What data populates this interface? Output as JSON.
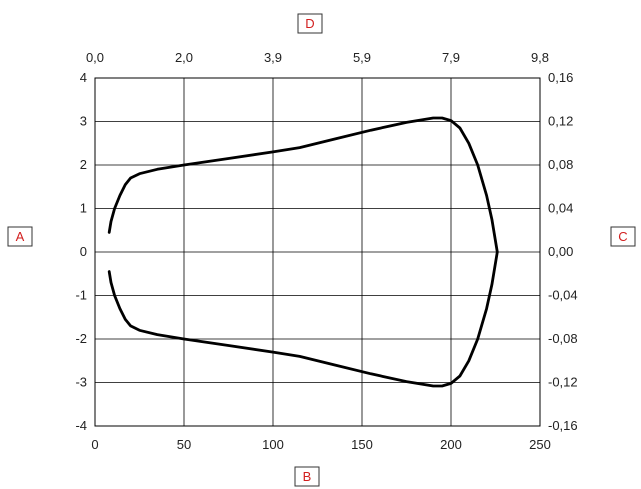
{
  "chart_data": {
    "type": "line",
    "title": "",
    "axis_labels": {
      "left": "A",
      "bottom": "B",
      "right": "C",
      "top": "D"
    },
    "x_bottom": {
      "ticks": [
        "0",
        "50",
        "100",
        "150",
        "200",
        "250"
      ],
      "range": [
        0,
        250
      ]
    },
    "x_top": {
      "ticks": [
        "0,0",
        "2,0",
        "3,9",
        "5,9",
        "7,9",
        "9,8"
      ],
      "range": [
        0,
        9.8
      ]
    },
    "y_left": {
      "ticks": [
        "4",
        "3",
        "2",
        "1",
        "0",
        "-1",
        "-2",
        "-3",
        "-4"
      ],
      "range": [
        -4,
        4
      ]
    },
    "y_right": {
      "ticks": [
        "0,16",
        "0,12",
        "0,08",
        "0,04",
        "0,00",
        "-0,04",
        "-0,08",
        "-0,12",
        "-0,16"
      ],
      "range": [
        -0.16,
        0.16
      ]
    },
    "grid": true,
    "series": [
      {
        "x": [
          8,
          9,
          11,
          14,
          17,
          20,
          25,
          35,
          50,
          75,
          100,
          115,
          135,
          155,
          175,
          190,
          195,
          200,
          205,
          210,
          215,
          220,
          223,
          226,
          223,
          220,
          215,
          210,
          205,
          200,
          195,
          190,
          175,
          155,
          135,
          115,
          100,
          75,
          50,
          35,
          25,
          20,
          17,
          14,
          11,
          9,
          8
        ],
        "y": [
          0.45,
          0.7,
          1.0,
          1.3,
          1.55,
          1.7,
          1.8,
          1.9,
          2.0,
          2.15,
          2.3,
          2.4,
          2.6,
          2.8,
          2.98,
          3.08,
          3.08,
          3.02,
          2.85,
          2.5,
          2.0,
          1.3,
          0.75,
          0.0,
          -0.75,
          -1.3,
          -2.0,
          -2.5,
          -2.85,
          -3.02,
          -3.08,
          -3.08,
          -2.98,
          -2.8,
          -2.6,
          -2.4,
          -2.3,
          -2.15,
          -2.0,
          -1.9,
          -1.8,
          -1.7,
          -1.55,
          -1.3,
          -1.0,
          -0.7,
          -0.45
        ]
      }
    ]
  }
}
